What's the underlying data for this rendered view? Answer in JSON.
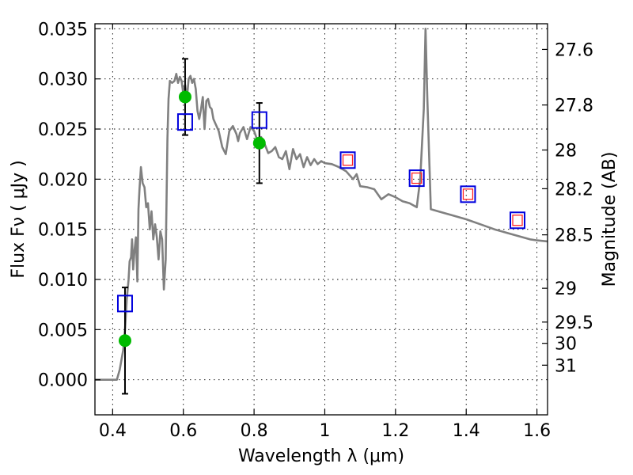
{
  "chart_data": {
    "type": "scatter",
    "xlabel": "Wavelength  λ (μm)",
    "ylabel": "Flux  Fν  ( μJy )",
    "ylabel_right": "Magnitude (AB)",
    "xlim": [
      0.35,
      1.63
    ],
    "ylim": [
      -0.0035,
      0.0355
    ],
    "x_ticks": [
      0.4,
      0.6,
      0.8,
      1.0,
      1.2,
      1.4,
      1.6
    ],
    "x_tick_labels": [
      "0.4",
      "0.6",
      "0.8",
      "1",
      "1.2",
      "1.4",
      "1.6"
    ],
    "y_ticks": [
      0.0,
      0.005,
      0.01,
      0.015,
      0.02,
      0.025,
      0.03,
      0.035
    ],
    "y_tick_labels": [
      "0.000",
      "0.005",
      "0.010",
      "0.015",
      "0.020",
      "0.025",
      "0.030",
      "0.035"
    ],
    "right_ticks": [
      {
        "label": "27.6",
        "flux": 0.03294
      },
      {
        "label": "27.8",
        "flux": 0.0274
      },
      {
        "label": "28",
        "flux": 0.02291
      },
      {
        "label": "28.2",
        "flux": 0.01905
      },
      {
        "label": "28.5",
        "flux": 0.01445
      },
      {
        "label": "29",
        "flux": 0.00912
      },
      {
        "label": "29.5",
        "flux": 0.00575
      },
      {
        "label": "30",
        "flux": 0.00363
      },
      {
        "label": "31",
        "flux": 0.00145
      }
    ],
    "grid": true,
    "colors": {
      "model": "#808080",
      "observed": "#00bb00",
      "model_photometry_blue": "#0000dd",
      "model_photometry_red": "#ff2222",
      "errorbar": "#000000"
    },
    "model_spectrum": {
      "x": [
        0.35,
        0.4,
        0.412,
        0.42,
        0.43,
        0.435,
        0.44,
        0.445,
        0.448,
        0.452,
        0.455,
        0.458,
        0.462,
        0.466,
        0.47,
        0.473,
        0.476,
        0.48,
        0.485,
        0.49,
        0.495,
        0.5,
        0.505,
        0.51,
        0.515,
        0.52,
        0.525,
        0.53,
        0.535,
        0.54,
        0.545,
        0.55,
        0.555,
        0.558,
        0.562,
        0.568,
        0.575,
        0.58,
        0.585,
        0.59,
        0.595,
        0.6,
        0.605,
        0.61,
        0.615,
        0.62,
        0.625,
        0.63,
        0.635,
        0.64,
        0.645,
        0.65,
        0.655,
        0.66,
        0.665,
        0.67,
        0.675,
        0.68,
        0.685,
        0.69,
        0.695,
        0.7,
        0.71,
        0.72,
        0.73,
        0.74,
        0.75,
        0.755,
        0.76,
        0.77,
        0.78,
        0.79,
        0.8,
        0.81,
        0.82,
        0.83,
        0.84,
        0.85,
        0.86,
        0.87,
        0.88,
        0.89,
        0.9,
        0.91,
        0.92,
        0.93,
        0.94,
        0.95,
        0.96,
        0.97,
        0.98,
        0.99,
        1.0,
        1.02,
        1.04,
        1.06,
        1.08,
        1.09,
        1.1,
        1.12,
        1.14,
        1.16,
        1.18,
        1.2,
        1.22,
        1.24,
        1.26,
        1.27,
        1.28,
        1.285,
        1.29,
        1.3,
        1.32,
        1.36,
        1.4,
        1.44,
        1.48,
        1.52,
        1.56,
        1.58,
        1.6,
        1.63
      ],
      "y": [
        0.0,
        0.0,
        0.0,
        0.001,
        0.003,
        0.005,
        0.008,
        0.01,
        0.0118,
        0.0122,
        0.014,
        0.011,
        0.013,
        0.0142,
        0.0098,
        0.017,
        0.019,
        0.0212,
        0.0196,
        0.0192,
        0.0172,
        0.0176,
        0.015,
        0.0168,
        0.014,
        0.0155,
        0.0142,
        0.012,
        0.0148,
        0.014,
        0.009,
        0.012,
        0.024,
        0.028,
        0.0298,
        0.0296,
        0.0298,
        0.0305,
        0.0296,
        0.0302,
        0.0298,
        0.0285,
        0.0294,
        0.028,
        0.03,
        0.0303,
        0.0296,
        0.03,
        0.029,
        0.0268,
        0.026,
        0.027,
        0.0282,
        0.025,
        0.0278,
        0.028,
        0.0272,
        0.027,
        0.026,
        0.0256,
        0.0252,
        0.0248,
        0.0232,
        0.0225,
        0.0248,
        0.0253,
        0.0245,
        0.0238,
        0.0246,
        0.0252,
        0.024,
        0.0252,
        0.0248,
        0.0238,
        0.0242,
        0.0235,
        0.0226,
        0.0228,
        0.0232,
        0.0222,
        0.022,
        0.0228,
        0.021,
        0.023,
        0.022,
        0.0225,
        0.0212,
        0.0222,
        0.0214,
        0.022,
        0.0215,
        0.0218,
        0.0216,
        0.0215,
        0.0212,
        0.0208,
        0.02,
        0.0205,
        0.0193,
        0.0192,
        0.019,
        0.018,
        0.0185,
        0.0182,
        0.0178,
        0.0176,
        0.0172,
        0.02,
        0.027,
        0.035,
        0.028,
        0.017,
        0.0168,
        0.0164,
        0.016,
        0.0155,
        0.015,
        0.0146,
        0.0142,
        0.014,
        0.0139,
        0.0138
      ]
    },
    "observed": {
      "x": [
        0.435,
        0.605,
        0.815
      ],
      "y": [
        0.0039,
        0.0282,
        0.0236
      ],
      "yerr": [
        0.0053,
        0.0038,
        0.004
      ]
    },
    "model_photometry": {
      "x": [
        0.435,
        0.605,
        0.815,
        1.065,
        1.26,
        1.405,
        1.545
      ],
      "y": [
        0.0076,
        0.0257,
        0.0259,
        0.0219,
        0.0201,
        0.0185,
        0.0159
      ],
      "red_inner": [
        false,
        false,
        false,
        true,
        true,
        true,
        true
      ]
    }
  }
}
